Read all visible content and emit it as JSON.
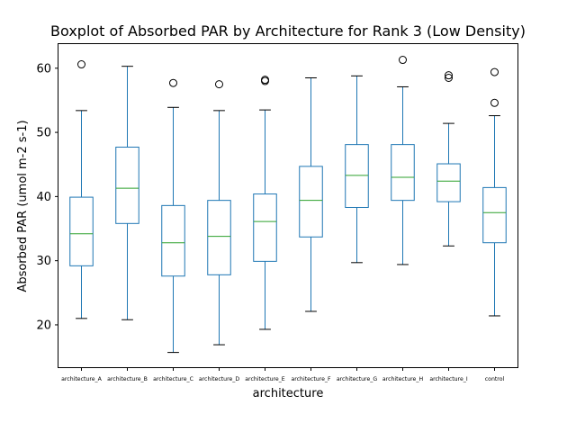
{
  "chart_data": {
    "type": "box",
    "title": "Boxplot of Absorbed PAR by Architecture for Rank 3 (Low Density)",
    "xlabel": "architecture",
    "ylabel": "Absorbed PAR (umol m-2 s-1)",
    "ylim": [
      13.4,
      63.9
    ],
    "yticks": [
      20,
      30,
      40,
      50,
      60
    ],
    "grid": false,
    "colors": {
      "box": "#1f77b4",
      "median": "#2ca02c",
      "whisker": "#1f77b4",
      "cap": "#000000",
      "flier": "#000000"
    },
    "categories": [
      "architecture_A",
      "architecture_B",
      "architecture_C",
      "architecture_D",
      "architecture_E",
      "architecture_F",
      "architecture_G",
      "architecture_H",
      "architecture_I",
      "control"
    ],
    "boxes": [
      {
        "whislo": 21.0,
        "q1": 29.2,
        "med": 34.2,
        "q3": 39.9,
        "whishi": 53.4,
        "fliers": [
          60.6
        ]
      },
      {
        "whislo": 20.8,
        "q1": 35.8,
        "med": 41.3,
        "q3": 47.7,
        "whishi": 60.3,
        "fliers": []
      },
      {
        "whislo": 15.7,
        "q1": 27.6,
        "med": 32.8,
        "q3": 38.6,
        "whishi": 53.9,
        "fliers": [
          57.7
        ]
      },
      {
        "whislo": 16.9,
        "q1": 27.8,
        "med": 33.8,
        "q3": 39.4,
        "whishi": 53.4,
        "fliers": [
          57.5
        ]
      },
      {
        "whislo": 19.3,
        "q1": 29.9,
        "med": 36.1,
        "q3": 40.4,
        "whishi": 53.5,
        "fliers": [
          58.0,
          58.2
        ]
      },
      {
        "whislo": 22.1,
        "q1": 33.7,
        "med": 39.4,
        "q3": 44.7,
        "whishi": 58.5,
        "fliers": []
      },
      {
        "whislo": 29.7,
        "q1": 38.3,
        "med": 43.3,
        "q3": 48.1,
        "whishi": 58.8,
        "fliers": []
      },
      {
        "whislo": 29.4,
        "q1": 39.4,
        "med": 43.0,
        "q3": 48.1,
        "whishi": 57.1,
        "fliers": [
          61.3
        ]
      },
      {
        "whislo": 32.3,
        "q1": 39.2,
        "med": 42.4,
        "q3": 45.1,
        "whishi": 51.4,
        "fliers": [
          58.5,
          58.9
        ]
      },
      {
        "whislo": 21.4,
        "q1": 32.8,
        "med": 37.5,
        "q3": 41.4,
        "whishi": 52.6,
        "fliers": [
          54.6,
          59.4
        ]
      }
    ]
  }
}
